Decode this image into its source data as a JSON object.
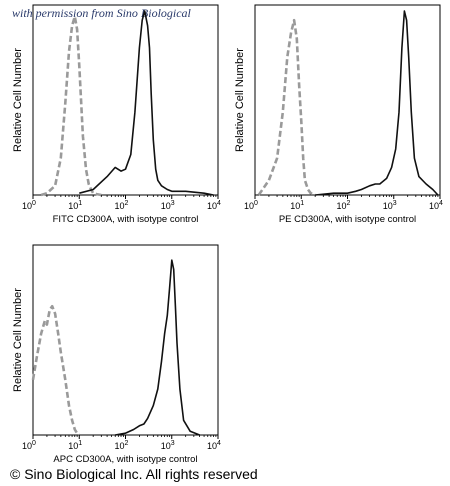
{
  "watermark": "with permission from Sino Biological",
  "copyright": "© Sino Biological Inc. All rights reserved",
  "colors": {
    "isotype": "#9a9a9a",
    "stained": "#111111",
    "axis": "#000000"
  },
  "chart_data": [
    {
      "type": "line",
      "xlabel": "FITC CD300A, with isotype control",
      "ylabel": "Relative Cell Number",
      "xscale": "log",
      "xlim": [
        1,
        10000
      ],
      "ylim": [
        0,
        1
      ],
      "xticks": [
        {
          "value": 1,
          "base": "10",
          "exp": "0"
        },
        {
          "value": 10,
          "base": "10",
          "exp": "1"
        },
        {
          "value": 100,
          "base": "10",
          "exp": "2"
        },
        {
          "value": 1000,
          "base": "10",
          "exp": "3"
        },
        {
          "value": 10000,
          "base": "10",
          "exp": "4"
        }
      ],
      "series": [
        {
          "style": "dashed",
          "color": "#9a9a9a",
          "x": [
            1.5,
            2,
            3,
            4,
            5,
            6,
            7,
            8,
            9,
            10,
            11,
            12,
            14,
            16,
            18,
            20,
            24,
            30
          ],
          "y": [
            0.0,
            0.01,
            0.05,
            0.2,
            0.5,
            0.78,
            0.92,
            0.97,
            0.9,
            0.7,
            0.5,
            0.32,
            0.14,
            0.06,
            0.03,
            0.01,
            0.005,
            0.0
          ]
        },
        {
          "style": "solid",
          "color": "#111111",
          "x": [
            10,
            20,
            40,
            60,
            80,
            100,
            130,
            160,
            200,
            230,
            260,
            300,
            330,
            360,
            400,
            450,
            500,
            600,
            800,
            1000,
            2000,
            5000,
            8000
          ],
          "y": [
            0.01,
            0.03,
            0.1,
            0.15,
            0.13,
            0.14,
            0.22,
            0.45,
            0.8,
            0.95,
            1.0,
            0.92,
            0.8,
            0.55,
            0.3,
            0.14,
            0.08,
            0.05,
            0.03,
            0.02,
            0.02,
            0.01,
            0.0
          ]
        }
      ]
    },
    {
      "type": "line",
      "xlabel": "PE CD300A, with isotype control",
      "ylabel": "Relative Cell Number",
      "xscale": "log",
      "xlim": [
        1,
        10000
      ],
      "ylim": [
        0,
        1
      ],
      "xticks": [
        {
          "value": 1,
          "base": "10",
          "exp": "0"
        },
        {
          "value": 10,
          "base": "10",
          "exp": "1"
        },
        {
          "value": 100,
          "base": "10",
          "exp": "2"
        },
        {
          "value": 1000,
          "base": "10",
          "exp": "3"
        },
        {
          "value": 10000,
          "base": "10",
          "exp": "4"
        }
      ],
      "series": [
        {
          "style": "dashed",
          "color": "#9a9a9a",
          "x": [
            1.2,
            2,
            3,
            4,
            5,
            6,
            7,
            8,
            9,
            10,
            11,
            12,
            14,
            16,
            20
          ],
          "y": [
            0.0,
            0.08,
            0.2,
            0.45,
            0.75,
            0.88,
            0.95,
            0.85,
            0.6,
            0.4,
            0.2,
            0.08,
            0.03,
            0.01,
            0.0
          ]
        },
        {
          "style": "solid",
          "color": "#111111",
          "x": [
            20,
            50,
            100,
            150,
            200,
            300,
            400,
            500,
            700,
            900,
            1100,
            1300,
            1500,
            1700,
            1900,
            2100,
            2400,
            2800,
            3500,
            5000,
            7000,
            9000
          ],
          "y": [
            0.0,
            0.01,
            0.01,
            0.02,
            0.03,
            0.05,
            0.06,
            0.06,
            0.09,
            0.15,
            0.25,
            0.45,
            0.8,
            1.0,
            0.95,
            0.75,
            0.45,
            0.2,
            0.1,
            0.06,
            0.03,
            0.0
          ]
        }
      ]
    },
    {
      "type": "line",
      "xlabel": "APC CD300A, with isotype control",
      "ylabel": "Relative Cell Number",
      "xscale": "log",
      "xlim": [
        1,
        10000
      ],
      "ylim": [
        0,
        1
      ],
      "xticks": [
        {
          "value": 1,
          "base": "10",
          "exp": "0"
        },
        {
          "value": 10,
          "base": "10",
          "exp": "1"
        },
        {
          "value": 100,
          "base": "10",
          "exp": "2"
        },
        {
          "value": 1000,
          "base": "10",
          "exp": "3"
        },
        {
          "value": 10000,
          "base": "10",
          "exp": "4"
        }
      ],
      "series": [
        {
          "style": "dashed",
          "color": "#9a9a9a",
          "x": [
            1,
            1.2,
            1.5,
            1.8,
            2,
            2.3,
            2.6,
            3,
            3.5,
            4,
            5,
            6,
            7,
            8,
            9,
            10
          ],
          "y": [
            0.3,
            0.42,
            0.55,
            0.62,
            0.6,
            0.68,
            0.7,
            0.66,
            0.55,
            0.45,
            0.3,
            0.16,
            0.08,
            0.03,
            0.01,
            0.0
          ]
        },
        {
          "style": "solid",
          "color": "#111111",
          "x": [
            60,
            100,
            150,
            200,
            250,
            300,
            400,
            500,
            600,
            700,
            800,
            900,
            1000,
            1100,
            1200,
            1300,
            1500,
            1800,
            2500,
            4000
          ],
          "y": [
            0.0,
            0.01,
            0.03,
            0.05,
            0.06,
            0.09,
            0.16,
            0.25,
            0.4,
            0.55,
            0.65,
            0.8,
            0.95,
            0.9,
            0.7,
            0.5,
            0.25,
            0.08,
            0.02,
            0.0
          ]
        }
      ]
    }
  ]
}
